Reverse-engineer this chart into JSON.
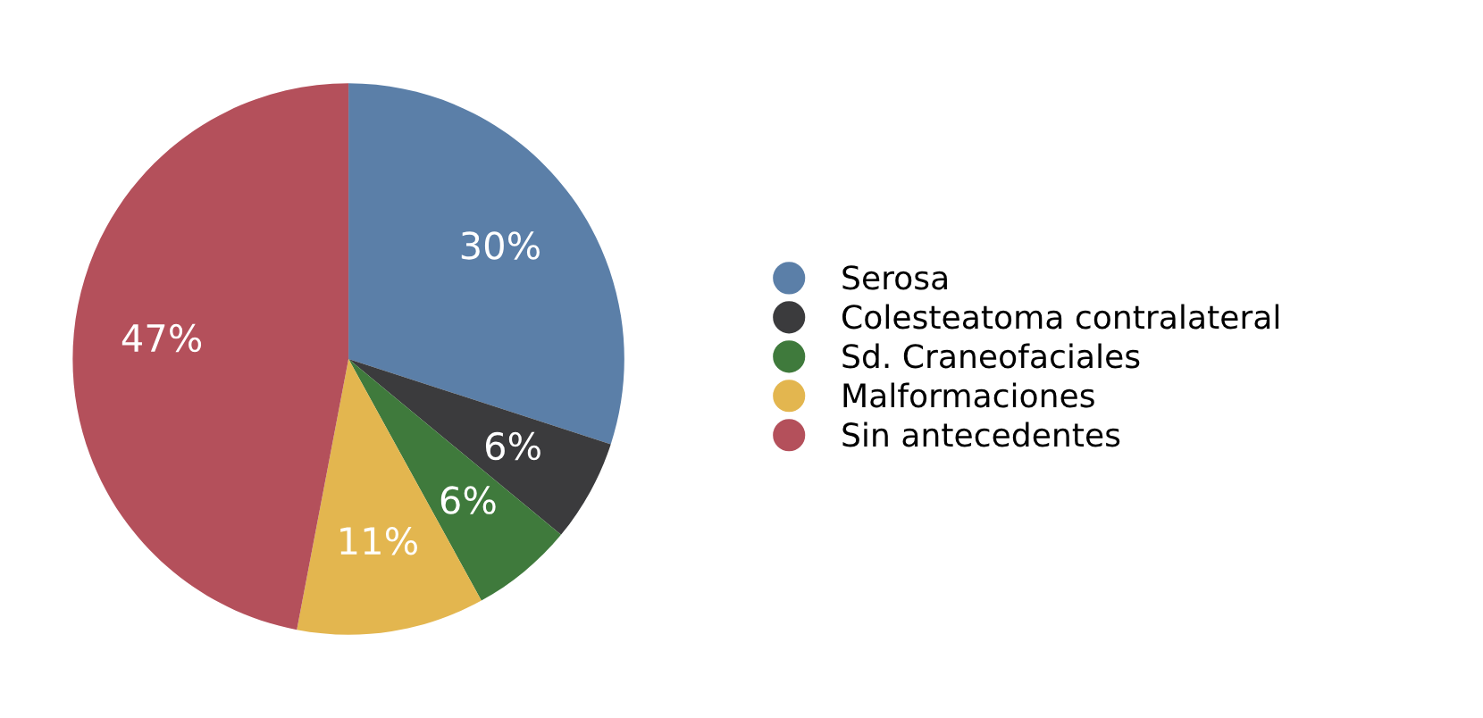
{
  "chart_data": {
    "type": "pie",
    "categories": [
      "Serosa",
      "Colesteatoma contralateral",
      "Sd. Craneofaciales",
      "Malformaciones",
      "Sin antecedentes"
    ],
    "values": [
      30,
      6,
      6,
      11,
      47
    ],
    "colors": [
      "#5b7fa8",
      "#3b3b3d",
      "#3f7a3c",
      "#e3b64f",
      "#b4505b"
    ],
    "value_labels": [
      "30%",
      "6%",
      "6%",
      "11%",
      "47%"
    ],
    "legend": "right"
  }
}
